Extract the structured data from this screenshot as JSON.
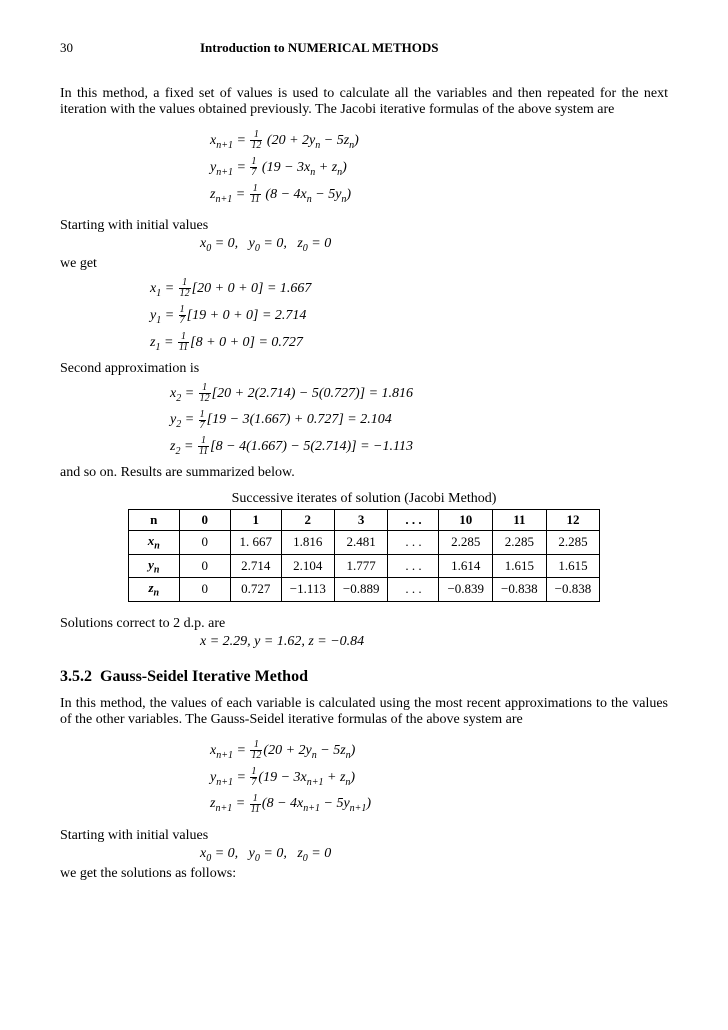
{
  "header": {
    "page_number": "30",
    "title": "Introduction to NUMERICAL METHODS"
  },
  "para1": "In this method, a fixed set of values is used to calculate all the variables and then repeated for the  next iteration with the values obtained previously. The Jacobi  iterative formulas of the above system are",
  "jacobi_formulas": {
    "x": {
      "lhs_var": "x",
      "lhs_sub": "n+1",
      "frac_num": "1",
      "frac_den": "12",
      "rhs": "(20 + 2y",
      "rhs_sub": "n",
      "rhs2": " − 5z",
      "rhs2_sub": "n",
      "close": ")"
    },
    "y": {
      "lhs_var": "y",
      "lhs_sub": "n+1",
      "frac_num": "1",
      "frac_den": "7",
      "rhs": "(19 − 3x",
      "rhs_sub": "n",
      "rhs2": " + z",
      "rhs2_sub": "n",
      "close": ")"
    },
    "z": {
      "lhs_var": "z",
      "lhs_sub": "n+1",
      "frac_num": "1",
      "frac_den": "11",
      "rhs": "(8 − 4x",
      "rhs_sub": "n",
      "rhs2": " − 5y",
      "rhs2_sub": "n",
      "close": ")"
    }
  },
  "label_initial": "Starting with initial values",
  "initial_values": {
    "x": "x",
    "xs": "0",
    "xv": " = 0,",
    "y": "y",
    "ys": "0",
    "yv": " = 0,",
    "z": "z",
    "zs": "0",
    "zv": " = 0"
  },
  "label_weget": "we get",
  "iter1": {
    "x": {
      "v": "x",
      "s": "1",
      "fn": "1",
      "fd": "12",
      "body": "[20 + 0 + 0] = 1.667"
    },
    "y": {
      "v": "y",
      "s": "1",
      "fn": "1",
      "fd": "7",
      "body": "[19 + 0 + 0] = 2.714"
    },
    "z": {
      "v": "z",
      "s": "1",
      "fn": "1",
      "fd": "11",
      "body": "[8 + 0 + 0] = 0.727"
    }
  },
  "label_second": "Second approximation is",
  "iter2": {
    "x": {
      "v": "x",
      "s": "2",
      "fn": "1",
      "fd": "12",
      "body": "[20 + 2(2.714) − 5(0.727)] = 1.816"
    },
    "y": {
      "v": "y",
      "s": "2",
      "fn": "1",
      "fd": "7",
      "body": "[19 − 3(1.667) + 0.727] = 2.104"
    },
    "z": {
      "v": "z",
      "s": "2",
      "fn": "1",
      "fd": "11",
      "body": "[8 − 4(1.667) − 5(2.714)] = −1.113"
    }
  },
  "label_andsoon": "and so on. Results are summarized below.",
  "table": {
    "caption": "Successive iterates of solution (Jacobi Method)",
    "headers": [
      "n",
      "0",
      "1",
      "2",
      "3",
      ". . .",
      "10",
      "11",
      "12"
    ],
    "rows": [
      {
        "label": "x",
        "sub": "n",
        "cells": [
          "0",
          "1. 667",
          "1.816",
          "2.481",
          ". . .",
          "2.285",
          "2.285",
          "2.285"
        ]
      },
      {
        "label": "y",
        "sub": "n",
        "cells": [
          "0",
          "2.714",
          "2.104",
          "1.777",
          ". . .",
          "1.614",
          "1.615",
          "1.615"
        ]
      },
      {
        "label": "z",
        "sub": "n",
        "cells": [
          "0",
          "0.727",
          "−1.113",
          "−0.889",
          ". . .",
          "−0.839",
          "−0.838",
          "−0.838"
        ]
      }
    ]
  },
  "label_solutions": "Solutions correct to 2 d.p. are",
  "solutions": {
    "text": "x = 2.29,    y = 1.62,    z = −0.84"
  },
  "section": {
    "num": "3.5.2",
    "title": "Gauss-Seidel Iterative Method"
  },
  "para2": "In this method, the values of each variable is calculated using the most recent approximations to the values of the other variables. The Gauss-Seidel iterative formulas of the above system are",
  "gs_formulas": {
    "x": {
      "lhs_var": "x",
      "lhs_sub": "n+1",
      "fn": "1",
      "fd": "12",
      "rhs": "(20 + 2y",
      "rs": "n",
      "rhs2": " − 5z",
      "rs2": "n",
      "close": ")"
    },
    "y": {
      "lhs_var": "y",
      "lhs_sub": "n+1",
      "fn": "1",
      "fd": "7",
      "rhs": "(19 − 3x",
      "rs": "n+1",
      "rhs2": " + z",
      "rs2": "n",
      "close": ")"
    },
    "z": {
      "lhs_var": "z",
      "lhs_sub": "n+1",
      "fn": "1",
      "fd": "11",
      "rhs": "(8 − 4x",
      "rs": "n+1",
      "rhs2": " − 5y",
      "rs2": "n+1",
      "close": ")"
    }
  },
  "label_initial2": "Starting with initial values",
  "initial_values2": {
    "x": "x",
    "xs": "0",
    "xv": " = 0,",
    "y": "y",
    "ys": "0",
    "yv": " = 0,",
    "z": "z",
    "zs": "0",
    "zv": " = 0"
  },
  "label_wegetsol": "we get the solutions as follows:"
}
